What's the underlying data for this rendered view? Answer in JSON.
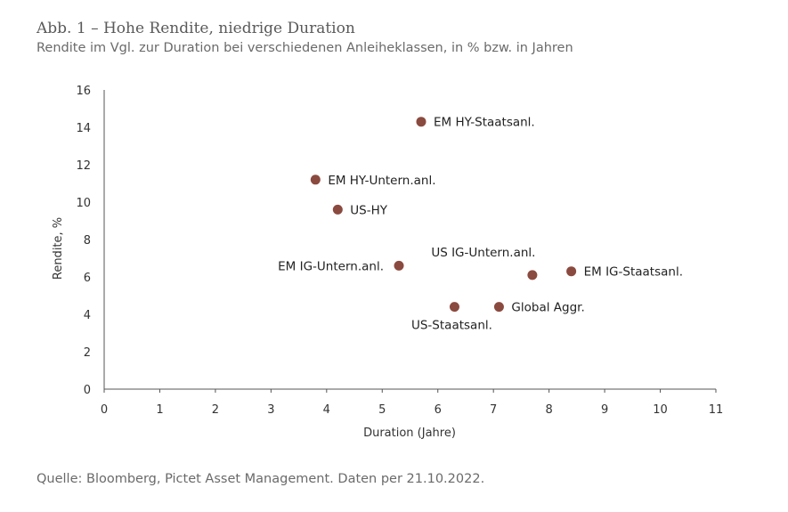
{
  "header": {
    "title": "Abb. 1 – Hohe Rendite, niedrige Duration",
    "subtitle": "Rendite im Vgl. zur Duration bei verschiedenen Anleiheklassen, in % bzw. in Jahren"
  },
  "footer": {
    "source": "Quelle: Bloomberg, Pictet Asset Management. Daten per 21.10.2022."
  },
  "colors": {
    "marker": "#8b4a3f",
    "axis": "#555555"
  },
  "chart_data": {
    "type": "scatter",
    "title": "Abb. 1 – Hohe Rendite, niedrige Duration",
    "subtitle": "Rendite im Vgl. zur Duration bei verschiedenen Anleiheklassen, in % bzw. in Jahren",
    "xlabel": "Duration (Jahre)",
    "ylabel": "Rendite, %",
    "xlim": [
      0,
      11
    ],
    "ylim": [
      0,
      16
    ],
    "xticks": [
      0,
      1,
      2,
      3,
      4,
      5,
      6,
      7,
      8,
      9,
      10,
      11
    ],
    "yticks": [
      0,
      2,
      4,
      6,
      8,
      10,
      12,
      14,
      16
    ],
    "grid": false,
    "legend": "none",
    "points": [
      {
        "label": "EM HY-Staatsanl.",
        "x": 5.7,
        "y": 14.3,
        "label_pos": "right"
      },
      {
        "label": "EM HY-Untern.anl.",
        "x": 3.8,
        "y": 11.2,
        "label_pos": "right"
      },
      {
        "label": "US-HY",
        "x": 4.2,
        "y": 9.6,
        "label_pos": "right"
      },
      {
        "label": "EM IG-Untern.anl.",
        "x": 5.3,
        "y": 6.6,
        "label_pos": "left"
      },
      {
        "label": "US IG-Untern.anl.",
        "x": 7.7,
        "y": 6.1,
        "label_pos": "top"
      },
      {
        "label": "EM IG-Staatsanl.",
        "x": 8.4,
        "y": 6.3,
        "label_pos": "right"
      },
      {
        "label": "US-Staatsanl.",
        "x": 6.3,
        "y": 4.4,
        "label_pos": "bottom"
      },
      {
        "label": "Global Aggr.",
        "x": 7.1,
        "y": 4.4,
        "label_pos": "right"
      }
    ]
  }
}
